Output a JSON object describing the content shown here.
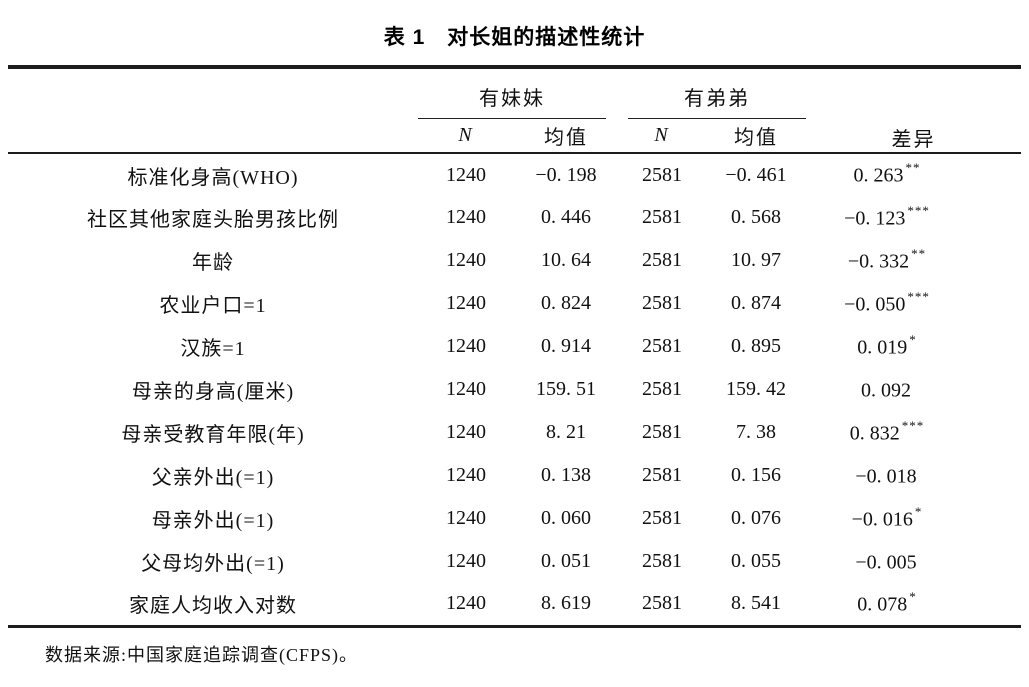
{
  "caption": {
    "label": "表 1",
    "title": "对长姐的描述性统计"
  },
  "header": {
    "group_sisters": "有妹妹",
    "group_brothers": "有弟弟",
    "diff": "差异",
    "n": "N",
    "mean": "均值"
  },
  "rows": [
    {
      "label": "标准化身高(WHO)",
      "n1": "1240",
      "mean1": "−0. 198",
      "n2": "2581",
      "mean2": "−0. 461",
      "diff": "0. 263",
      "stars": "**"
    },
    {
      "label": "社区其他家庭头胎男孩比例",
      "n1": "1240",
      "mean1": "0. 446",
      "n2": "2581",
      "mean2": "0. 568",
      "diff": "−0. 123",
      "stars": "***"
    },
    {
      "label": "年龄",
      "n1": "1240",
      "mean1": "10. 64",
      "n2": "2581",
      "mean2": "10. 97",
      "diff": "−0. 332",
      "stars": "**"
    },
    {
      "label": "农业户口=1",
      "n1": "1240",
      "mean1": "0. 824",
      "n2": "2581",
      "mean2": "0. 874",
      "diff": "−0. 050",
      "stars": "***"
    },
    {
      "label": "汉族=1",
      "n1": "1240",
      "mean1": "0. 914",
      "n2": "2581",
      "mean2": "0. 895",
      "diff": "0. 019",
      "stars": "*"
    },
    {
      "label": "母亲的身高(厘米)",
      "n1": "1240",
      "mean1": "159. 51",
      "n2": "2581",
      "mean2": "159. 42",
      "diff": "0. 092",
      "stars": ""
    },
    {
      "label": "母亲受教育年限(年)",
      "n1": "1240",
      "mean1": "8. 21",
      "n2": "2581",
      "mean2": "7. 38",
      "diff": "0. 832",
      "stars": "***"
    },
    {
      "label": "父亲外出(=1)",
      "n1": "1240",
      "mean1": "0. 138",
      "n2": "2581",
      "mean2": "0. 156",
      "diff": "−0. 018",
      "stars": ""
    },
    {
      "label": "母亲外出(=1)",
      "n1": "1240",
      "mean1": "0. 060",
      "n2": "2581",
      "mean2": "0. 076",
      "diff": "−0. 016",
      "stars": "*"
    },
    {
      "label": "父母均外出(=1)",
      "n1": "1240",
      "mean1": "0. 051",
      "n2": "2581",
      "mean2": "0. 055",
      "diff": "−0. 005",
      "stars": ""
    },
    {
      "label": "家庭人均收入对数",
      "n1": "1240",
      "mean1": "8. 619",
      "n2": "2581",
      "mean2": "8. 541",
      "diff": "0. 078",
      "stars": "*"
    }
  ],
  "footer": {
    "source": "数据来源:中国家庭追踪调查(CFPS)。"
  }
}
